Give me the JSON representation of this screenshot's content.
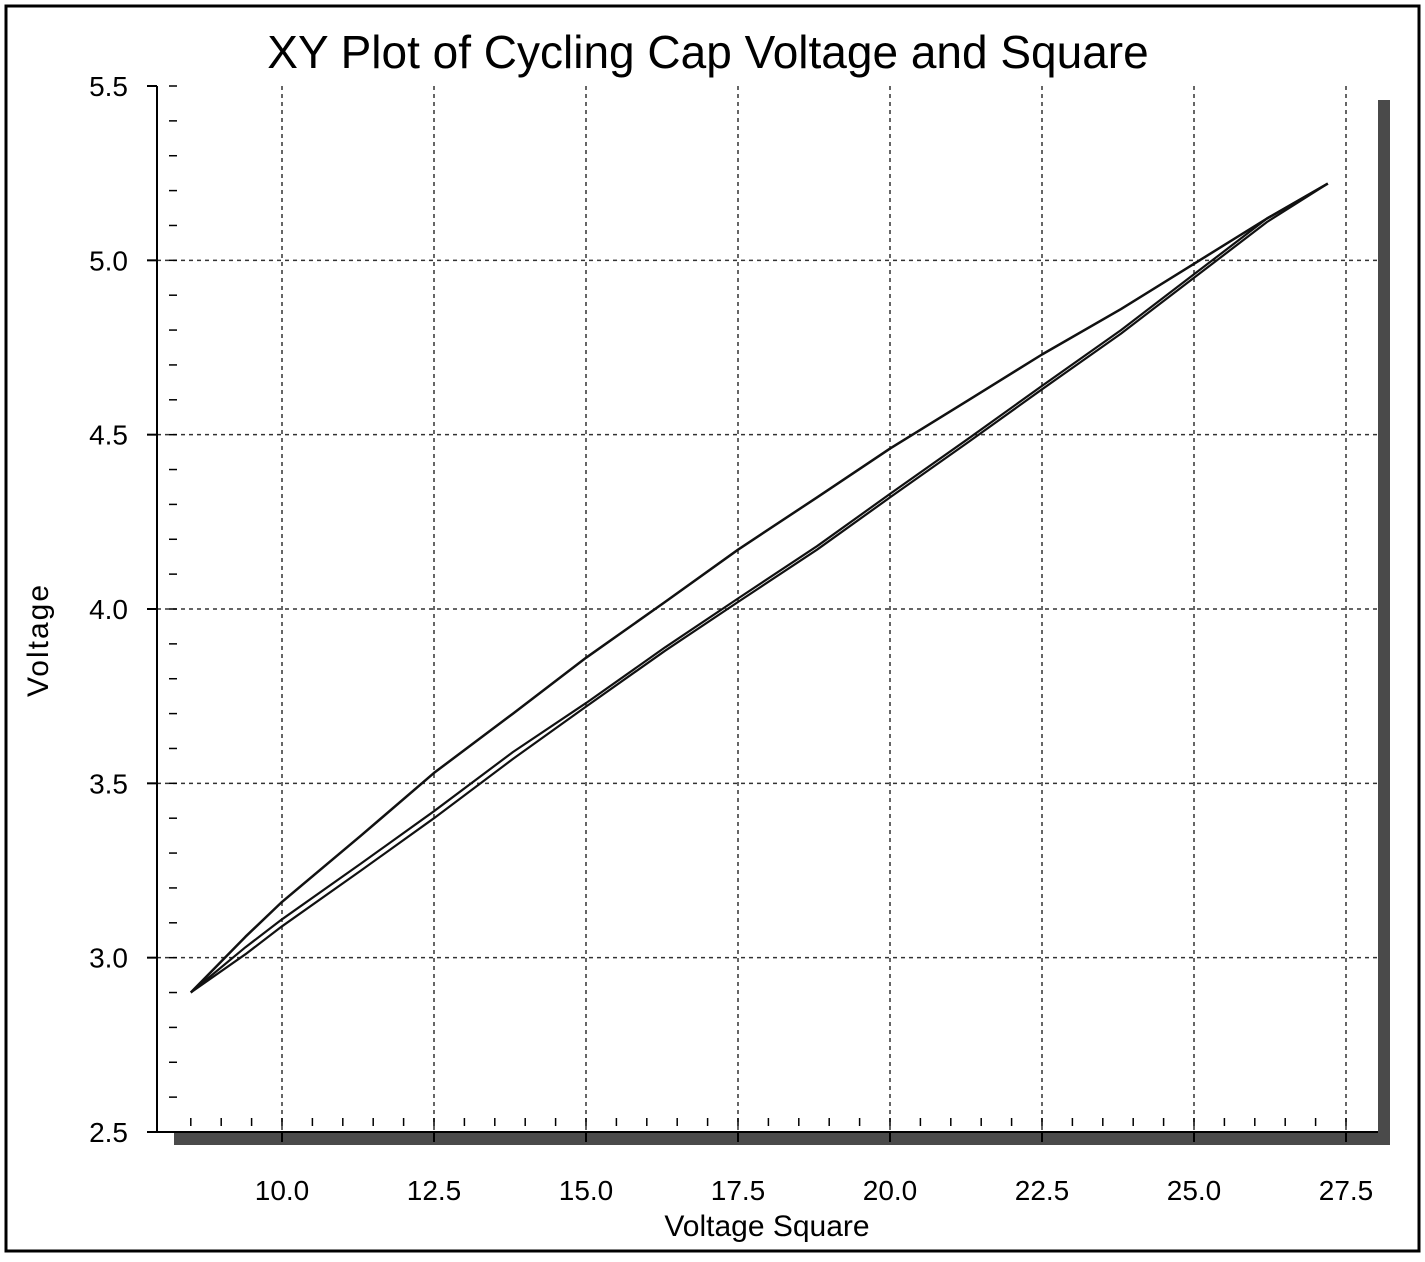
{
  "chart_data": {
    "type": "line",
    "title": "XY Plot of Cycling Cap Voltage and Square",
    "xlabel": "Voltage Square",
    "ylabel": "Voltage",
    "xlim": [
      8.0,
      28.0
    ],
    "ylim": [
      2.5,
      5.5
    ],
    "xticks": [
      10.0,
      12.5,
      15.0,
      17.5,
      20.0,
      22.5,
      25.0,
      27.5
    ],
    "yticks": [
      2.5,
      3.0,
      3.5,
      4.0,
      4.5,
      5.0,
      5.5
    ],
    "xtick_labels": [
      "10.0",
      "12.5",
      "15.0",
      "17.5",
      "20.0",
      "22.5",
      "25.0",
      "27.5"
    ],
    "ytick_labels": [
      "2.5",
      "3.0",
      "3.5",
      "4.0",
      "4.5",
      "5.0",
      "5.5"
    ],
    "grid": true,
    "legend": "none",
    "line_color": "#111111",
    "series": [
      {
        "x": [
          8.5,
          9.4,
          10.0,
          11.3,
          12.5,
          13.8,
          15.0,
          16.3,
          17.5,
          18.8,
          20.0,
          21.3,
          22.5,
          23.8,
          25.0,
          26.2,
          27.2
        ],
        "y": [
          2.9,
          3.06,
          3.16,
          3.35,
          3.53,
          3.7,
          3.86,
          4.02,
          4.17,
          4.32,
          4.46,
          4.6,
          4.73,
          4.86,
          4.99,
          5.12,
          5.22
        ]
      },
      {
        "x": [
          8.5,
          9.4,
          10.0,
          11.3,
          12.5,
          13.8,
          15.0,
          16.3,
          17.5,
          18.8,
          20.0,
          21.3,
          22.5,
          23.8,
          25.0,
          26.2,
          27.2
        ],
        "y": [
          2.9,
          3.03,
          3.11,
          3.27,
          3.42,
          3.59,
          3.73,
          3.89,
          4.03,
          4.18,
          4.33,
          4.49,
          4.64,
          4.8,
          4.96,
          5.12,
          5.22
        ]
      },
      {
        "x": [
          8.5,
          9.4,
          10.0,
          11.3,
          12.5,
          13.8,
          15.0,
          16.3,
          17.5,
          18.8,
          20.0,
          21.3,
          22.5,
          23.8,
          25.0,
          26.2,
          27.2
        ],
        "y": [
          2.9,
          3.01,
          3.09,
          3.25,
          3.4,
          3.57,
          3.72,
          3.88,
          4.02,
          4.17,
          4.32,
          4.48,
          4.63,
          4.79,
          4.95,
          5.11,
          5.22
        ]
      }
    ]
  }
}
